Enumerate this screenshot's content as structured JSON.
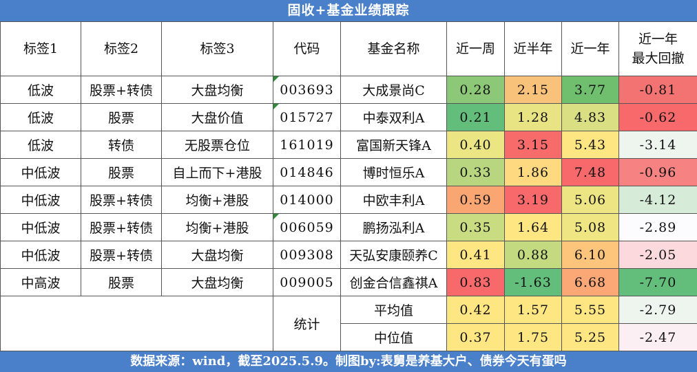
{
  "title": "固收+基金业绩跟踪",
  "footer": "数据来源：wind，截至2025.5.9。制图by:表舅是养基大户、债券今天有蛋吗",
  "headers": {
    "tag1": "标签1",
    "tag2": "标签2",
    "tag3": "标签3",
    "code": "代码",
    "name": "基金名称",
    "week": "近一周",
    "half_year": "近半年",
    "year": "近一年",
    "mdd_line1": "近一年",
    "mdd_line2": "最大回撤"
  },
  "rows": [
    {
      "tag1": "低波",
      "tag2": "股票+转债",
      "tag3": "大盘均衡",
      "code": "003693",
      "marker": true,
      "name": "大成景尚C",
      "week": "0.28",
      "half_year": "2.15",
      "year": "3.77",
      "mdd": "-0.81",
      "colors": {
        "week": "#8cc877",
        "half_year": "#f9c27b",
        "year": "#6fbf6e",
        "mdd": "#f37372"
      }
    },
    {
      "tag1": "低波",
      "tag2": "股票",
      "tag3": "大盘价值",
      "code": "015727",
      "marker": true,
      "name": "中泰双利A",
      "week": "0.21",
      "half_year": "1.28",
      "year": "4.83",
      "mdd": "-0.62",
      "colors": {
        "week": "#63be7b",
        "half_year": "#e9e483",
        "year": "#d9df82",
        "mdd": "#f8696b"
      }
    },
    {
      "tag1": "低波",
      "tag2": "转债",
      "tag3": "无股票仓位",
      "code": "161019",
      "marker": false,
      "name": "富国新天锋A",
      "week": "0.40",
      "half_year": "3.15",
      "year": "5.43",
      "mdd": "-3.14",
      "colors": {
        "week": "#ebe583",
        "half_year": "#f86b6b",
        "year": "#fee683",
        "mdd": "#eef5ef"
      }
    },
    {
      "tag1": "中低波",
      "tag2": "股票",
      "tag3": "自上而下+港股",
      "code": "014846",
      "marker": false,
      "name": "博时恒乐A",
      "week": "0.33",
      "half_year": "1.86",
      "year": "7.48",
      "mdd": "-0.96",
      "colors": {
        "week": "#b8d67f",
        "half_year": "#fed980",
        "year": "#f8696b",
        "mdd": "#f68282"
      }
    },
    {
      "tag1": "中低波",
      "tag2": "股票+转债",
      "tag3": "均衡+港股",
      "code": "014000",
      "marker": false,
      "name": "中欧丰利A",
      "week": "0.59",
      "half_year": "3.19",
      "year": "5.06",
      "mdd": "-4.12",
      "colors": {
        "week": "#f9a673",
        "half_year": "#f8696b",
        "year": "#ede583",
        "mdd": "#d6ecd9"
      }
    },
    {
      "tag1": "中低波",
      "tag2": "股票+转债",
      "tag3": "均衡+港股",
      "code": "006059",
      "marker": true,
      "name": "鹏扬泓利A",
      "week": "0.35",
      "half_year": "1.64",
      "year": "5.08",
      "mdd": "-2.89",
      "colors": {
        "week": "#c9dc81",
        "half_year": "#fee683",
        "year": "#efe683",
        "mdd": "#fcfcff"
      }
    },
    {
      "tag1": "中低波",
      "tag2": "股票+转债",
      "tag3": "大盘均衡",
      "code": "009308",
      "marker": false,
      "name": "天弘安康颐养C",
      "week": "0.41",
      "half_year": "0.88",
      "year": "6.10",
      "mdd": "-2.05",
      "colors": {
        "week": "#fee683",
        "half_year": "#c4da80",
        "year": "#fdc47c",
        "mdd": "#fbd9dc"
      }
    },
    {
      "tag1": "中高波",
      "tag2": "股票",
      "tag3": "大盘均衡",
      "code": "009005",
      "marker": false,
      "name": "创金合信鑫祺A",
      "week": "0.83",
      "half_year": "-1.63",
      "year": "6.68",
      "mdd": "-7.70",
      "colors": {
        "week": "#f8696b",
        "half_year": "#63be7b",
        "year": "#fba876",
        "mdd": "#63be7b"
      }
    }
  ],
  "stats": {
    "label": "统计",
    "avg": {
      "label": "平均值",
      "week": "0.42",
      "half_year": "1.57",
      "year": "5.55",
      "mdd": "-2.79",
      "colors": {
        "week": "#fee683",
        "half_year": "#fee683",
        "year": "#fee683",
        "mdd": "#eef5ef"
      }
    },
    "median": {
      "label": "中位值",
      "week": "0.37",
      "half_year": "1.75",
      "year": "5.25",
      "mdd": "-2.47",
      "colors": {
        "week": "#fee683",
        "half_year": "#fee683",
        "year": "#fee683",
        "mdd": "#fceff3"
      }
    }
  }
}
